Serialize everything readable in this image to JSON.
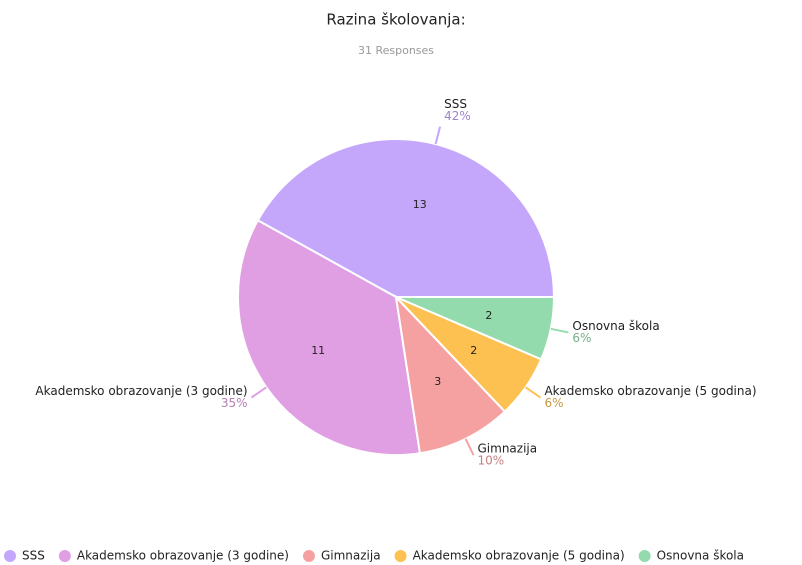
{
  "chart_data": {
    "type": "pie",
    "title": "Razina školovanja:",
    "subtitle": "31 Responses",
    "categories": [
      "SSS",
      "Akademsko obrazovanje (3 godine)",
      "Gimnazija",
      "Akademsko obrazovanje (5 godina)",
      "Osnovna škola"
    ],
    "values": [
      13,
      11,
      3,
      2,
      2
    ],
    "percent_labels": [
      "42%",
      "35%",
      "10%",
      "6%",
      "6%"
    ],
    "colors": [
      "#c4a7fb",
      "#e19fe3",
      "#f6a1a1",
      "#fcc151",
      "#93dbac"
    ],
    "legend": "bottom"
  }
}
